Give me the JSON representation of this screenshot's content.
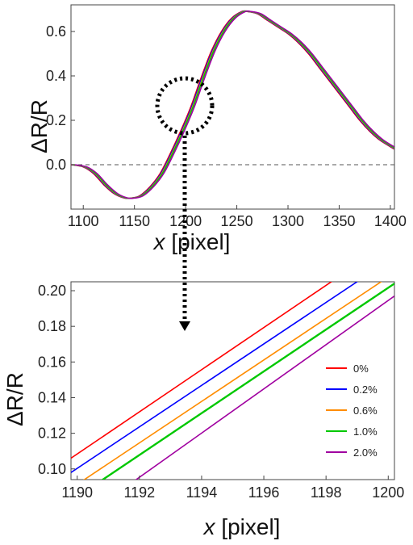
{
  "chart_data": [
    {
      "type": "line",
      "xlabel_var": "x",
      "xlabel_unit": "[pixel]",
      "ylabel": "ΔR/R",
      "xlim": [
        1088,
        1404
      ],
      "ylim": [
        -0.2,
        0.72
      ],
      "xticks": [
        1100,
        1150,
        1200,
        1250,
        1300,
        1350,
        1400
      ],
      "yticks": [
        0.0,
        0.2,
        0.4,
        0.6
      ],
      "ytick_labels": [
        "0.0",
        "0.2",
        "0.4",
        "0.6"
      ],
      "reference_line": {
        "y": 0.0,
        "style": "dashed"
      },
      "highlight": "dotted-circle",
      "x": [
        1088,
        1100,
        1110,
        1120,
        1130,
        1140,
        1147,
        1155,
        1165,
        1175,
        1185,
        1195,
        1205,
        1215,
        1225,
        1235,
        1245,
        1255,
        1260,
        1270,
        1280,
        1290,
        1300,
        1310,
        1320,
        1330,
        1340,
        1350,
        1360,
        1370,
        1380,
        1390,
        1404
      ],
      "series": [
        {
          "name": "0%",
          "color": "#ff0000",
          "dx": 0.0,
          "values": [
            0.0,
            -0.01,
            -0.04,
            -0.09,
            -0.13,
            -0.15,
            -0.15,
            -0.14,
            -0.1,
            -0.04,
            0.05,
            0.15,
            0.26,
            0.39,
            0.51,
            0.6,
            0.66,
            0.69,
            0.69,
            0.68,
            0.65,
            0.62,
            0.59,
            0.55,
            0.5,
            0.44,
            0.38,
            0.32,
            0.26,
            0.2,
            0.15,
            0.11,
            0.07
          ]
        },
        {
          "name": "0.2%",
          "color": "#0000ff",
          "dx": 0.8
        },
        {
          "name": "0.6%",
          "color": "#ff8c00",
          "dx": 1.6
        },
        {
          "name": "1.0%",
          "color": "#00c800",
          "dx": 2.2
        },
        {
          "name": "2.0%",
          "color": "#a000a0",
          "dx": 3.5
        }
      ]
    },
    {
      "type": "line",
      "xlabel_var": "x",
      "xlabel_unit": "[pixel]",
      "ylabel": "ΔR/R",
      "xlim": [
        1189.8,
        1200.2
      ],
      "ylim": [
        0.094,
        0.205
      ],
      "xticks": [
        1190,
        1192,
        1194,
        1196,
        1198,
        1200
      ],
      "yticks": [
        0.1,
        0.12,
        0.14,
        0.16,
        0.18,
        0.2
      ],
      "ytick_labels": [
        "0.10",
        "0.12",
        "0.14",
        "0.16",
        "0.18",
        "0.20"
      ],
      "legend_position": "right",
      "x": [
        1189.8,
        1200.2
      ],
      "series": [
        {
          "name": "0%",
          "color": "#ff0000",
          "values": [
            0.106,
            0.229
          ]
        },
        {
          "name": "0.2%",
          "color": "#0000ff",
          "values": [
            0.098,
            0.219
          ]
        },
        {
          "name": "0.6%",
          "color": "#ff8c00",
          "values": [
            0.089,
            0.21
          ]
        },
        {
          "name": "1.0%",
          "color": "#00c800",
          "values": [
            0.082,
            0.204
          ]
        },
        {
          "name": "2.0%",
          "color": "#a000a0",
          "values": [
            0.068,
            0.197
          ]
        }
      ]
    }
  ]
}
